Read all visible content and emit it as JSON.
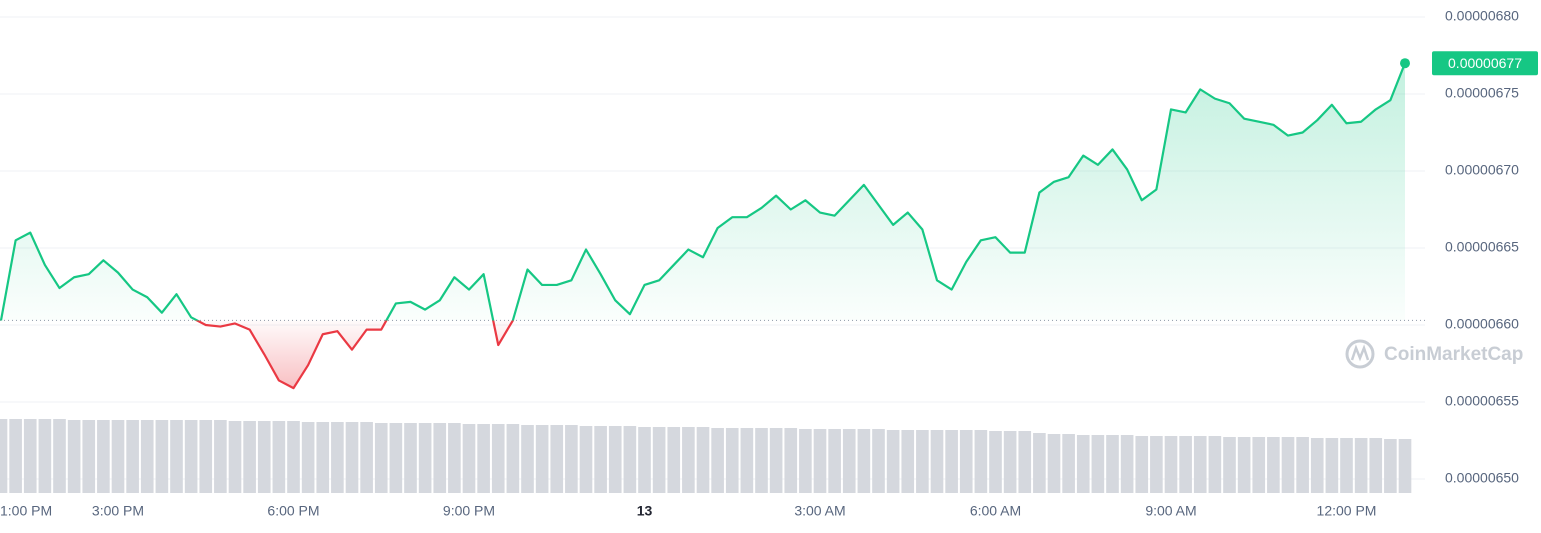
{
  "chart_data": {
    "type": "line",
    "categories": [
      "1:00 PM",
      null,
      null,
      null,
      null,
      null,
      null,
      null,
      "3:00 PM",
      null,
      null,
      null,
      null,
      null,
      null,
      null,
      null,
      null,
      null,
      null,
      "6:00 PM",
      null,
      null,
      null,
      null,
      null,
      null,
      null,
      null,
      null,
      null,
      null,
      "9:00 PM",
      null,
      null,
      null,
      null,
      null,
      null,
      null,
      null,
      null,
      null,
      null,
      "13",
      null,
      null,
      null,
      null,
      null,
      null,
      null,
      null,
      null,
      null,
      null,
      "3:00 AM",
      null,
      null,
      null,
      null,
      null,
      null,
      null,
      null,
      null,
      null,
      null,
      "6:00 AM",
      null,
      null,
      null,
      null,
      null,
      null,
      null,
      null,
      null,
      null,
      null,
      "9:00 AM",
      null,
      null,
      null,
      null,
      null,
      null,
      null,
      null,
      null,
      null,
      null,
      "12:00 PM",
      null,
      null,
      null,
      null
    ],
    "values": [
      6.603e-06,
      6.655e-06,
      6.66e-06,
      6.639e-06,
      6.624e-06,
      6.631e-06,
      6.633e-06,
      6.642e-06,
      6.634e-06,
      6.623e-06,
      6.618e-06,
      6.608e-06,
      6.62e-06,
      6.605e-06,
      6.6e-06,
      6.599e-06,
      6.601e-06,
      6.597e-06,
      6.581e-06,
      6.564e-06,
      6.559e-06,
      6.574e-06,
      6.594e-06,
      6.596e-06,
      6.584e-06,
      6.597e-06,
      6.597e-06,
      6.614e-06,
      6.615e-06,
      6.61e-06,
      6.616e-06,
      6.631e-06,
      6.623e-06,
      6.633e-06,
      6.587e-06,
      6.603e-06,
      6.636e-06,
      6.626e-06,
      6.626e-06,
      6.629e-06,
      6.649e-06,
      6.633e-06,
      6.616e-06,
      6.607e-06,
      6.626e-06,
      6.629e-06,
      6.639e-06,
      6.649e-06,
      6.644e-06,
      6.663e-06,
      6.67e-06,
      6.67e-06,
      6.676e-06,
      6.684e-06,
      6.675e-06,
      6.681e-06,
      6.673e-06,
      6.671e-06,
      6.681e-06,
      6.691e-06,
      6.678e-06,
      6.665e-06,
      6.673e-06,
      6.662e-06,
      6.629e-06,
      6.623e-06,
      6.641e-06,
      6.655e-06,
      6.657e-06,
      6.647e-06,
      6.647e-06,
      6.686e-06,
      6.693e-06,
      6.696e-06,
      6.71e-06,
      6.704e-06,
      6.714e-06,
      6.701e-06,
      6.681e-06,
      6.688e-06,
      6.74e-06,
      6.738e-06,
      6.753e-06,
      6.747e-06,
      6.744e-06,
      6.734e-06,
      6.732e-06,
      6.73e-06,
      6.723e-06,
      6.725e-06,
      6.733e-06,
      6.743e-06,
      6.731e-06,
      6.732e-06,
      6.74e-06,
      6.746e-06,
      6.77e-06
    ],
    "volume": [
      74,
      74,
      74,
      74,
      74,
      73,
      73,
      73,
      73,
      73,
      73,
      73,
      73,
      73,
      73,
      73,
      72,
      72,
      72,
      72,
      72,
      71,
      71,
      71,
      71,
      71,
      70,
      70,
      70,
      70,
      70,
      70,
      69,
      69,
      69,
      69,
      68,
      68,
      68,
      68,
      67,
      67,
      67,
      67,
      66,
      66,
      66,
      66,
      66,
      65,
      65,
      65,
      65,
      65,
      65,
      64,
      64,
      64,
      64,
      64,
      64,
      63,
      63,
      63,
      63,
      63,
      63,
      63,
      62,
      62,
      62,
      60,
      59,
      59,
      58,
      58,
      58,
      58,
      57,
      57,
      57,
      57,
      57,
      57,
      56,
      56,
      56,
      56,
      56,
      56,
      55,
      55,
      55,
      55,
      55,
      54,
      54
    ],
    "up_color": "#16c784",
    "down_color": "#ea3943",
    "volume_color": "#d5d8de",
    "ylim": [
      6.5e-06,
      6.8e-06
    ],
    "yticks": [
      {
        "value": 6.5e-06,
        "label": "0.00000650"
      },
      6.55e-06,
      {
        "value": 6.6e-06,
        "label": "0.00000660"
      },
      6.65e-06,
      {
        "value": 6.7e-06,
        "label": "0.00000670"
      },
      6.75e-06,
      {
        "value": 6.8e-06,
        "label": "0.00000680"
      }
    ],
    "grid": true,
    "watermark": "CoinMarketCap"
  }
}
